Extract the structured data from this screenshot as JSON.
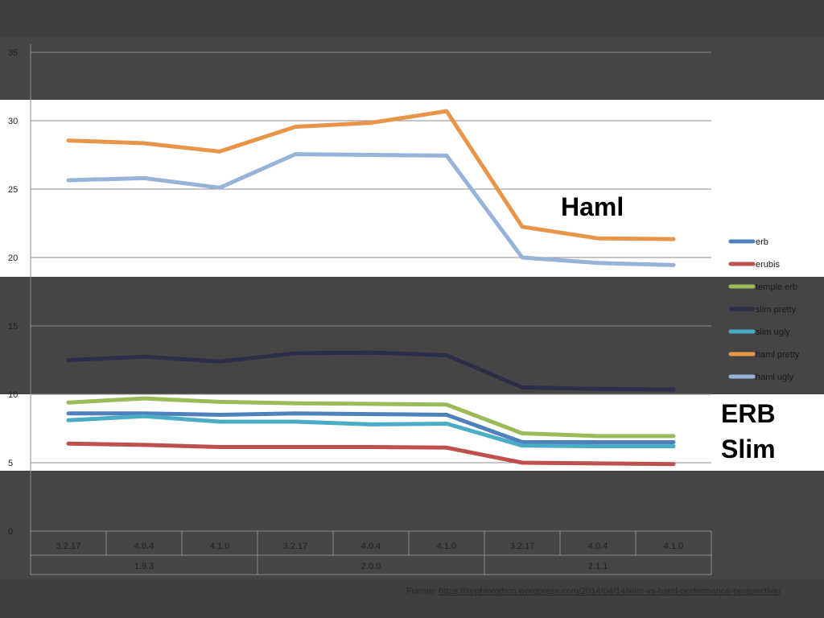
{
  "chart_data": {
    "type": "line",
    "ylim": [
      0,
      35
    ],
    "yticks": [
      0,
      5,
      10,
      15,
      20,
      25,
      30,
      35
    ],
    "grid": true,
    "legend_position": "right",
    "categories": [
      "3.2.17",
      "4.0.4",
      "4.1.0",
      "3.2.17",
      "4.0.4",
      "4.1.0",
      "3.2.17",
      "4.0.4",
      "4.1.0"
    ],
    "groups": [
      {
        "label": "1.9.3",
        "span": 3
      },
      {
        "label": "2.0.0",
        "span": 3
      },
      {
        "label": "2.1.1",
        "span": 3
      }
    ],
    "series": [
      {
        "name": "erb",
        "color": "#4f81bd",
        "values": [
          8.6,
          8.6,
          8.5,
          8.6,
          8.55,
          8.5,
          6.5,
          6.5,
          6.5
        ]
      },
      {
        "name": "erubis",
        "color": "#c0504d",
        "values": [
          6.4,
          6.3,
          6.15,
          6.15,
          6.15,
          6.1,
          5.0,
          4.95,
          4.9
        ]
      },
      {
        "name": "temple erb",
        "color": "#9bbb59",
        "values": [
          9.4,
          9.7,
          9.45,
          9.35,
          9.3,
          9.25,
          7.15,
          6.95,
          6.95
        ]
      },
      {
        "name": "slim pretty",
        "color": "#2c2d48",
        "values": [
          12.5,
          12.75,
          12.4,
          13.0,
          13.05,
          12.85,
          10.5,
          10.4,
          10.35
        ]
      },
      {
        "name": "slim ugly",
        "color": "#4bacc6",
        "values": [
          8.1,
          8.4,
          8.0,
          8.0,
          7.8,
          7.85,
          6.25,
          6.2,
          6.2
        ]
      },
      {
        "name": "haml pretty",
        "color": "#e8954a",
        "values": [
          28.55,
          28.35,
          27.75,
          29.55,
          29.85,
          30.7,
          22.25,
          21.4,
          21.35
        ]
      },
      {
        "name": "haml ugly",
        "color": "#97b3d9",
        "values": [
          25.65,
          25.8,
          25.1,
          27.55,
          27.5,
          27.45,
          20.0,
          19.6,
          19.45
        ]
      }
    ]
  },
  "callouts": {
    "haml": "Haml",
    "erb": "ERB",
    "slim": "Slim"
  },
  "source": {
    "prefix": "Fuente: ",
    "link": "https://sephinrothcn.wordpress.com/2014/04/14/slim-vs-haml-performance-perspective/"
  }
}
